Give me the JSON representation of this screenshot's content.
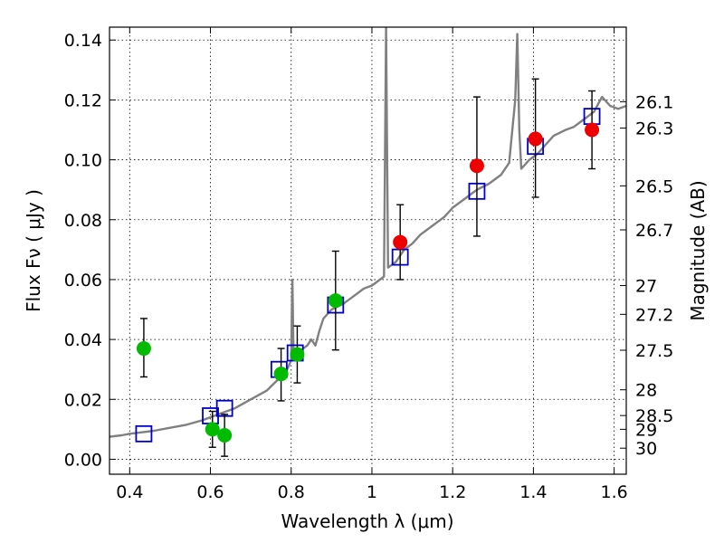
{
  "chart_data": {
    "type": "scatter",
    "xlabel": "Wavelength  λ (μm)",
    "ylabel": "Flux  Fν  ( μJy )",
    "y2label": "Magnitude (AB)",
    "xlim": [
      0.35,
      1.63
    ],
    "ylim": [
      -0.005,
      0.1443
    ],
    "grid": true,
    "x_ticks": [
      {
        "value": 0.4,
        "label": "0.4"
      },
      {
        "value": 0.6,
        "label": "0.6"
      },
      {
        "value": 0.8,
        "label": "0.8"
      },
      {
        "value": 1.0,
        "label": "1"
      },
      {
        "value": 1.2,
        "label": "1.2"
      },
      {
        "value": 1.4,
        "label": "1.4"
      },
      {
        "value": 1.6,
        "label": "1.6"
      }
    ],
    "y_ticks": [
      {
        "value": 0.0,
        "label": "0.00"
      },
      {
        "value": 0.02,
        "label": "0.02"
      },
      {
        "value": 0.04,
        "label": "0.04"
      },
      {
        "value": 0.06,
        "label": "0.06"
      },
      {
        "value": 0.08,
        "label": "0.08"
      },
      {
        "value": 0.1,
        "label": "0.10"
      },
      {
        "value": 0.12,
        "label": "0.12"
      },
      {
        "value": 0.14,
        "label": "0.14"
      }
    ],
    "y2_ticks": [
      {
        "flux": 0.1194,
        "label": "26.1"
      },
      {
        "flux": 0.1106,
        "label": "26.3"
      },
      {
        "flux": 0.0913,
        "label": "26.5"
      },
      {
        "flux": 0.0766,
        "label": "26.7"
      },
      {
        "flux": 0.058,
        "label": "27"
      },
      {
        "flux": 0.0484,
        "label": "27.2"
      },
      {
        "flux": 0.0364,
        "label": "27.5"
      },
      {
        "flux": 0.0232,
        "label": "28"
      },
      {
        "flux": 0.0146,
        "label": "28.5"
      },
      {
        "flux": 0.01,
        "label": "29"
      },
      {
        "flux": 0.0037,
        "label": "30"
      }
    ],
    "series": [
      {
        "kind": "line",
        "color": "#808080",
        "points": [
          [
            0.35,
            0.0075
          ],
          [
            0.38,
            0.008
          ],
          [
            0.4,
            0.0085
          ],
          [
            0.43,
            0.009
          ],
          [
            0.46,
            0.0095
          ],
          [
            0.5,
            0.0105
          ],
          [
            0.54,
            0.0115
          ],
          [
            0.58,
            0.013
          ],
          [
            0.62,
            0.015
          ],
          [
            0.66,
            0.017
          ],
          [
            0.7,
            0.02
          ],
          [
            0.74,
            0.023
          ],
          [
            0.77,
            0.027
          ],
          [
            0.79,
            0.03
          ],
          [
            0.8,
            0.033
          ],
          [
            0.803,
            0.06
          ],
          [
            0.806,
            0.034
          ],
          [
            0.82,
            0.036
          ],
          [
            0.84,
            0.038
          ],
          [
            0.85,
            0.04
          ],
          [
            0.86,
            0.038
          ],
          [
            0.87,
            0.043
          ],
          [
            0.88,
            0.047
          ],
          [
            0.9,
            0.05
          ],
          [
            0.93,
            0.052
          ],
          [
            0.95,
            0.054
          ],
          [
            0.98,
            0.057
          ],
          [
            1.0,
            0.058
          ],
          [
            1.02,
            0.06
          ],
          [
            1.03,
            0.061
          ],
          [
            1.035,
            0.1443
          ],
          [
            1.04,
            0.064
          ],
          [
            1.06,
            0.066
          ],
          [
            1.08,
            0.07
          ],
          [
            1.1,
            0.072
          ],
          [
            1.12,
            0.075
          ],
          [
            1.15,
            0.078
          ],
          [
            1.18,
            0.081
          ],
          [
            1.2,
            0.084
          ],
          [
            1.23,
            0.087
          ],
          [
            1.26,
            0.09
          ],
          [
            1.29,
            0.092
          ],
          [
            1.32,
            0.095
          ],
          [
            1.34,
            0.099
          ],
          [
            1.355,
            0.12
          ],
          [
            1.36,
            0.142
          ],
          [
            1.365,
            0.11
          ],
          [
            1.37,
            0.097
          ],
          [
            1.39,
            0.1
          ],
          [
            1.41,
            0.102
          ],
          [
            1.43,
            0.105
          ],
          [
            1.45,
            0.108
          ],
          [
            1.48,
            0.11
          ],
          [
            1.5,
            0.111
          ],
          [
            1.52,
            0.113
          ],
          [
            1.55,
            0.116
          ],
          [
            1.57,
            0.121
          ],
          [
            1.59,
            0.118
          ],
          [
            1.61,
            0.117
          ],
          [
            1.63,
            0.118
          ]
        ]
      },
      {
        "kind": "squares",
        "color": "#0000cc",
        "points": [
          [
            0.435,
            0.0085
          ],
          [
            0.6,
            0.0145
          ],
          [
            0.635,
            0.017
          ],
          [
            0.77,
            0.03
          ],
          [
            0.81,
            0.0355
          ],
          [
            0.91,
            0.0515
          ],
          [
            1.07,
            0.0675
          ],
          [
            1.26,
            0.0895
          ],
          [
            1.405,
            0.1045
          ],
          [
            1.545,
            0.1145
          ]
        ]
      },
      {
        "kind": "errorbar-points",
        "points": [
          {
            "x": 0.435,
            "y": 0.037,
            "lo": 0.0275,
            "hi": 0.047,
            "color": "#00bb00"
          },
          {
            "x": 0.605,
            "y": 0.01,
            "lo": 0.004,
            "hi": 0.016,
            "color": "#00bb00"
          },
          {
            "x": 0.635,
            "y": 0.008,
            "lo": 0.001,
            "hi": 0.015,
            "color": "#00bb00"
          },
          {
            "x": 0.775,
            "y": 0.0285,
            "lo": 0.0195,
            "hi": 0.037,
            "color": "#00bb00"
          },
          {
            "x": 0.815,
            "y": 0.035,
            "lo": 0.0255,
            "hi": 0.0445,
            "color": "#00bb00"
          },
          {
            "x": 0.91,
            "y": 0.053,
            "lo": 0.0365,
            "hi": 0.0695,
            "color": "#00bb00"
          },
          {
            "x": 1.07,
            "y": 0.0725,
            "lo": 0.06,
            "hi": 0.085,
            "color": "#ee0000"
          },
          {
            "x": 1.26,
            "y": 0.098,
            "lo": 0.0745,
            "hi": 0.121,
            "color": "#ee0000"
          },
          {
            "x": 1.405,
            "y": 0.107,
            "lo": 0.0875,
            "hi": 0.127,
            "color": "#ee0000"
          },
          {
            "x": 1.545,
            "y": 0.11,
            "lo": 0.097,
            "hi": 0.123,
            "color": "#ee0000"
          }
        ]
      }
    ]
  }
}
